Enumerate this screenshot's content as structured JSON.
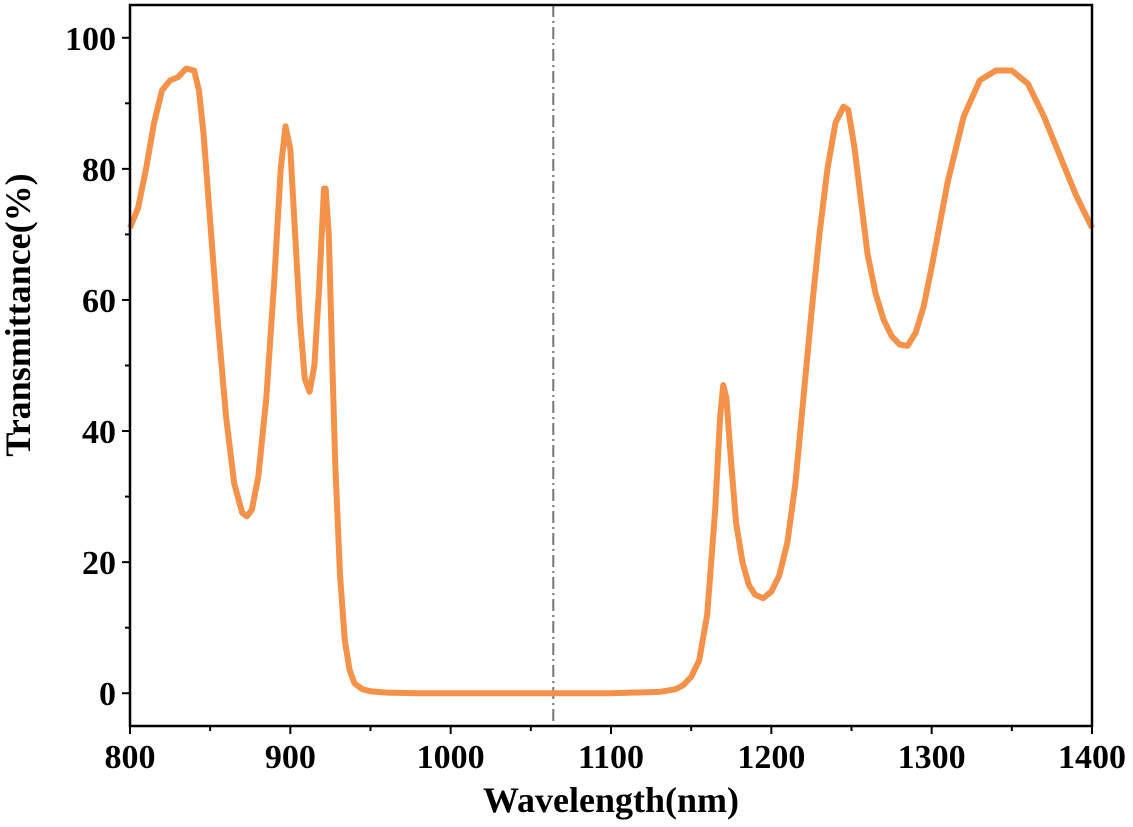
{
  "chart_data": {
    "type": "line",
    "xlabel": "Wavelength(nm)",
    "ylabel": "Transmittance(%)",
    "xlim": [
      800,
      1400
    ],
    "ylim": [
      -5,
      105
    ],
    "xticks": [
      800,
      900,
      1000,
      1100,
      1200,
      1300,
      1400
    ],
    "yticks": [
      0,
      20,
      40,
      60,
      80,
      100
    ],
    "vline": 1064,
    "series": [
      {
        "color": "#f5924a",
        "x": [
          800,
          805,
          810,
          815,
          820,
          825,
          830,
          835,
          840,
          843,
          846,
          850,
          855,
          860,
          865,
          870,
          873,
          876,
          880,
          885,
          890,
          894,
          897,
          900,
          903,
          906,
          909,
          912,
          915,
          918,
          921,
          922,
          924,
          926,
          928,
          931,
          934,
          937,
          940,
          945,
          950,
          960,
          980,
          1000,
          1050,
          1100,
          1130,
          1140,
          1145,
          1150,
          1155,
          1160,
          1165,
          1168,
          1170,
          1172,
          1175,
          1178,
          1182,
          1186,
          1190,
          1195,
          1200,
          1205,
          1210,
          1215,
          1220,
          1225,
          1230,
          1235,
          1240,
          1245,
          1248,
          1252,
          1256,
          1260,
          1265,
          1270,
          1275,
          1280,
          1285,
          1290,
          1295,
          1300,
          1310,
          1320,
          1330,
          1340,
          1350,
          1360,
          1370,
          1380,
          1390,
          1400
        ],
        "values": [
          71,
          74,
          80,
          87,
          92,
          93.5,
          94,
          95.3,
          95,
          92,
          85,
          72,
          56,
          42,
          32,
          27.5,
          27,
          28,
          33,
          45,
          63,
          80,
          86.5,
          83,
          70,
          57,
          48,
          46,
          50,
          62,
          77,
          77,
          70,
          52,
          35,
          18,
          8,
          3.5,
          1.5,
          0.6,
          0.3,
          0.1,
          0,
          0,
          0,
          0,
          0.2,
          0.6,
          1.2,
          2.5,
          5,
          12,
          28,
          42,
          47,
          45,
          35,
          26,
          20,
          16.5,
          15,
          14.5,
          15.5,
          18,
          23,
          32,
          45,
          58,
          70,
          80,
          87,
          89.5,
          89,
          83,
          75,
          67,
          61,
          57,
          54.5,
          53.2,
          53,
          55,
          59,
          65,
          78,
          88,
          93.5,
          95,
          95,
          93,
          88,
          82,
          76,
          71
        ]
      }
    ]
  }
}
